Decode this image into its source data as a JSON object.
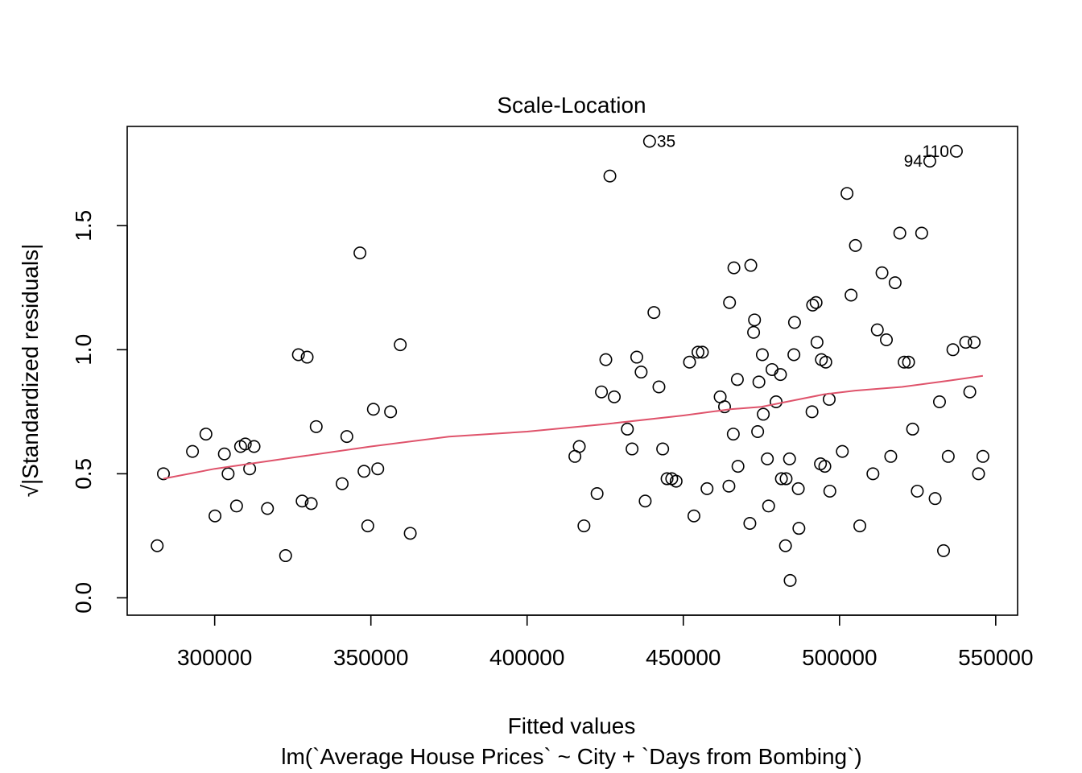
{
  "chart_data": {
    "type": "scatter",
    "title": "Scale-Location",
    "xlabel": "Fitted values",
    "subtitle": "lm(`Average House Prices` ~ City + `Days from Bombing`)",
    "ylabel": "√|Standardized residuals|",
    "xlim": [
      272000,
      557000
    ],
    "ylim": [
      -0.07,
      1.9
    ],
    "xticks": [
      300000,
      350000,
      400000,
      450000,
      500000,
      550000
    ],
    "xtick_labels": [
      "300000",
      "350000",
      "400000",
      "450000",
      "500000",
      "550000"
    ],
    "yticks": [
      0.0,
      0.5,
      1.0,
      1.5
    ],
    "ytick_labels": [
      "0.0",
      "0.5",
      "1.0",
      "1.5"
    ],
    "grid": false,
    "point_style": "open-circle",
    "points": [
      [
        281600,
        0.21
      ],
      [
        283600,
        0.5
      ],
      [
        292900,
        0.59
      ],
      [
        297200,
        0.66
      ],
      [
        300100,
        0.33
      ],
      [
        303100,
        0.58
      ],
      [
        304300,
        0.5
      ],
      [
        307000,
        0.37
      ],
      [
        308300,
        0.61
      ],
      [
        309800,
        0.62
      ],
      [
        311200,
        0.52
      ],
      [
        312600,
        0.61
      ],
      [
        316900,
        0.36
      ],
      [
        322700,
        0.17
      ],
      [
        326800,
        0.98
      ],
      [
        328000,
        0.39
      ],
      [
        329600,
        0.97
      ],
      [
        330900,
        0.38
      ],
      [
        332500,
        0.69
      ],
      [
        340800,
        0.46
      ],
      [
        342300,
        0.65
      ],
      [
        346500,
        1.39
      ],
      [
        347800,
        0.51
      ],
      [
        349000,
        0.29
      ],
      [
        350800,
        0.76
      ],
      [
        352200,
        0.52
      ],
      [
        356300,
        0.75
      ],
      [
        359400,
        1.02
      ],
      [
        362600,
        0.26
      ],
      [
        415300,
        0.57
      ],
      [
        416700,
        0.61
      ],
      [
        418200,
        0.29
      ],
      [
        422400,
        0.42
      ],
      [
        423800,
        0.83
      ],
      [
        425200,
        0.96
      ],
      [
        426500,
        1.7
      ],
      [
        427900,
        0.81
      ],
      [
        432100,
        0.68
      ],
      [
        433600,
        0.6
      ],
      [
        435100,
        0.97
      ],
      [
        436500,
        0.91
      ],
      [
        437800,
        0.39
      ],
      [
        439200,
        1.84
      ],
      [
        440600,
        1.15
      ],
      [
        442200,
        0.85
      ],
      [
        443400,
        0.6
      ],
      [
        444800,
        0.48
      ],
      [
        446300,
        0.48
      ],
      [
        447700,
        0.47
      ],
      [
        452000,
        0.95
      ],
      [
        453400,
        0.33
      ],
      [
        454700,
        0.99
      ],
      [
        456100,
        0.99
      ],
      [
        457600,
        0.44
      ],
      [
        461800,
        0.81
      ],
      [
        463200,
        0.77
      ],
      [
        464600,
        0.45
      ],
      [
        464800,
        1.19
      ],
      [
        466000,
        0.66
      ],
      [
        466200,
        1.33
      ],
      [
        467300,
        0.88
      ],
      [
        467500,
        0.53
      ],
      [
        471300,
        0.3
      ],
      [
        471600,
        1.34
      ],
      [
        472500,
        1.07
      ],
      [
        472800,
        1.12
      ],
      [
        473800,
        0.67
      ],
      [
        474200,
        0.87
      ],
      [
        475300,
        0.98
      ],
      [
        475600,
        0.74
      ],
      [
        476900,
        0.56
      ],
      [
        477300,
        0.37
      ],
      [
        478400,
        0.92
      ],
      [
        479700,
        0.79
      ],
      [
        481100,
        0.9
      ],
      [
        481400,
        0.48
      ],
      [
        482700,
        0.21
      ],
      [
        482900,
        0.48
      ],
      [
        484000,
        0.56
      ],
      [
        484200,
        0.07
      ],
      [
        485400,
        0.98
      ],
      [
        485600,
        1.11
      ],
      [
        486800,
        0.44
      ],
      [
        487000,
        0.28
      ],
      [
        491200,
        0.75
      ],
      [
        491400,
        1.18
      ],
      [
        492500,
        1.19
      ],
      [
        492800,
        1.03
      ],
      [
        493900,
        0.54
      ],
      [
        494200,
        0.96
      ],
      [
        495300,
        0.53
      ],
      [
        495600,
        0.95
      ],
      [
        496700,
        0.8
      ],
      [
        496900,
        0.43
      ],
      [
        500900,
        0.59
      ],
      [
        502400,
        1.63
      ],
      [
        503700,
        1.22
      ],
      [
        505100,
        1.42
      ],
      [
        506500,
        0.29
      ],
      [
        510700,
        0.5
      ],
      [
        512100,
        1.08
      ],
      [
        513600,
        1.31
      ],
      [
        515000,
        1.04
      ],
      [
        516400,
        0.57
      ],
      [
        517800,
        1.27
      ],
      [
        519300,
        1.47
      ],
      [
        520700,
        0.95
      ],
      [
        522100,
        0.95
      ],
      [
        523400,
        0.68
      ],
      [
        524900,
        0.43
      ],
      [
        526300,
        1.47
      ],
      [
        528900,
        1.76
      ],
      [
        530600,
        0.4
      ],
      [
        532000,
        0.79
      ],
      [
        533300,
        0.19
      ],
      [
        534800,
        0.57
      ],
      [
        536300,
        1.0
      ],
      [
        537400,
        1.8
      ],
      [
        540400,
        1.03
      ],
      [
        541700,
        0.83
      ],
      [
        543100,
        1.03
      ],
      [
        544500,
        0.5
      ],
      [
        545900,
        0.57
      ]
    ],
    "smooth_line": {
      "color": "#DF536B",
      "x": [
        283600,
        300000,
        325000,
        350000,
        375000,
        400000,
        425000,
        450000,
        465000,
        475000,
        485000,
        495000,
        505000,
        520000,
        535000,
        545900
      ],
      "y": [
        0.48,
        0.52,
        0.565,
        0.61,
        0.65,
        0.67,
        0.7,
        0.735,
        0.76,
        0.77,
        0.795,
        0.82,
        0.835,
        0.85,
        0.875,
        0.895
      ]
    },
    "annotations": [
      {
        "label": "35",
        "x": 439200,
        "y": 1.84,
        "pos": "right"
      },
      {
        "label": "110",
        "x": 537400,
        "y": 1.8,
        "pos": "left"
      },
      {
        "label": "94",
        "x": 528900,
        "y": 1.76,
        "pos": "left"
      }
    ]
  }
}
